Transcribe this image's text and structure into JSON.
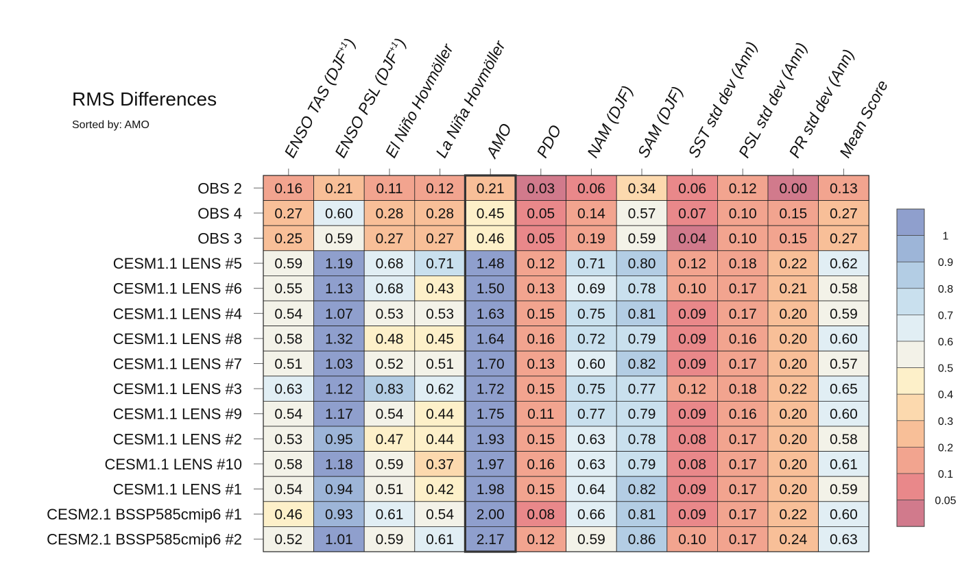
{
  "chart_data": {
    "type": "heatmap",
    "title": "RMS Differences",
    "subtitle": "Sorted by: AMO",
    "sorted_by": "AMO",
    "columns": [
      "ENSO TAS (DJF+1)",
      "ENSO PSL (DJF+1)",
      "El Niño Hovmöller",
      "La Niña Hovmöller",
      "AMO",
      "PDO",
      "NAM (DJF)",
      "SAM (DJF)",
      "SST std dev (Ann)",
      "PSL std dev (Ann)",
      "PR std dev (Ann)",
      "Mean Score"
    ],
    "column_labels": [
      {
        "base": "ENSO TAS (DJF",
        "sup": "+1",
        "end": ")"
      },
      {
        "base": "ENSO PSL (DJF",
        "sup": "+1",
        "end": ")"
      },
      {
        "base": "El Niño Hovmöller",
        "sup": "",
        "end": ""
      },
      {
        "base": "La Niña Hovmöller",
        "sup": "",
        "end": ""
      },
      {
        "base": "AMO",
        "sup": "",
        "end": ""
      },
      {
        "base": "PDO",
        "sup": "",
        "end": ""
      },
      {
        "base": "NAM (DJF)",
        "sup": "",
        "end": ""
      },
      {
        "base": "SAM (DJF)",
        "sup": "",
        "end": ""
      },
      {
        "base": "SST std dev (Ann)",
        "sup": "",
        "end": ""
      },
      {
        "base": "PSL std dev (Ann)",
        "sup": "",
        "end": ""
      },
      {
        "base": "PR std dev (Ann)",
        "sup": "",
        "end": ""
      },
      {
        "base": "Mean Score",
        "sup": "",
        "end": ""
      }
    ],
    "rows": [
      "OBS 2",
      "OBS 4",
      "OBS 3",
      "CESM1.1 LENS #5",
      "CESM1.1 LENS #6",
      "CESM1.1 LENS #4",
      "CESM1.1 LENS #8",
      "CESM1.1 LENS #7",
      "CESM1.1 LENS #3",
      "CESM1.1 LENS #9",
      "CESM1.1 LENS #2",
      "CESM1.1 LENS #10",
      "CESM1.1 LENS #1",
      "CESM2.1 BSSP585cmip6 #1",
      "CESM2.1 BSSP585cmip6 #2"
    ],
    "values": [
      [
        "0.16",
        "0.21",
        "0.11",
        "0.12",
        "0.21",
        "0.03",
        "0.06",
        "0.34",
        "0.06",
        "0.12",
        "0.00",
        "0.13"
      ],
      [
        "0.27",
        "0.60",
        "0.28",
        "0.28",
        "0.45",
        "0.05",
        "0.14",
        "0.57",
        "0.07",
        "0.10",
        "0.15",
        "0.27"
      ],
      [
        "0.25",
        "0.59",
        "0.27",
        "0.27",
        "0.46",
        "0.05",
        "0.19",
        "0.59",
        "0.04",
        "0.10",
        "0.15",
        "0.27"
      ],
      [
        "0.59",
        "1.19",
        "0.68",
        "0.71",
        "1.48",
        "0.12",
        "0.71",
        "0.80",
        "0.12",
        "0.18",
        "0.22",
        "0.62"
      ],
      [
        "0.55",
        "1.13",
        "0.68",
        "0.43",
        "1.50",
        "0.13",
        "0.69",
        "0.78",
        "0.10",
        "0.17",
        "0.21",
        "0.58"
      ],
      [
        "0.54",
        "1.07",
        "0.53",
        "0.53",
        "1.63",
        "0.15",
        "0.75",
        "0.81",
        "0.09",
        "0.17",
        "0.20",
        "0.59"
      ],
      [
        "0.58",
        "1.32",
        "0.48",
        "0.45",
        "1.64",
        "0.16",
        "0.72",
        "0.79",
        "0.09",
        "0.16",
        "0.20",
        "0.60"
      ],
      [
        "0.51",
        "1.03",
        "0.52",
        "0.51",
        "1.70",
        "0.13",
        "0.60",
        "0.82",
        "0.09",
        "0.17",
        "0.20",
        "0.57"
      ],
      [
        "0.63",
        "1.12",
        "0.83",
        "0.62",
        "1.72",
        "0.15",
        "0.75",
        "0.77",
        "0.12",
        "0.18",
        "0.22",
        "0.65"
      ],
      [
        "0.54",
        "1.17",
        "0.54",
        "0.44",
        "1.75",
        "0.11",
        "0.77",
        "0.79",
        "0.09",
        "0.16",
        "0.20",
        "0.60"
      ],
      [
        "0.53",
        "0.95",
        "0.47",
        "0.44",
        "1.93",
        "0.15",
        "0.63",
        "0.78",
        "0.08",
        "0.17",
        "0.20",
        "0.58"
      ],
      [
        "0.58",
        "1.18",
        "0.59",
        "0.37",
        "1.97",
        "0.16",
        "0.63",
        "0.79",
        "0.08",
        "0.17",
        "0.20",
        "0.61"
      ],
      [
        "0.54",
        "0.94",
        "0.51",
        "0.42",
        "1.98",
        "0.15",
        "0.64",
        "0.82",
        "0.09",
        "0.17",
        "0.20",
        "0.59"
      ],
      [
        "0.46",
        "0.93",
        "0.61",
        "0.54",
        "2.00",
        "0.08",
        "0.66",
        "0.81",
        "0.09",
        "0.17",
        "0.22",
        "0.60"
      ],
      [
        "0.52",
        "1.01",
        "0.59",
        "0.61",
        "2.17",
        "0.12",
        "0.59",
        "0.86",
        "0.10",
        "0.17",
        "0.24",
        "0.63"
      ]
    ],
    "highlight_column": "AMO",
    "colorbar": {
      "levels": [
        0.05,
        0.1,
        0.2,
        0.3,
        0.4,
        0.5,
        0.6,
        0.7,
        0.8,
        0.9,
        1
      ],
      "tick_labels": [
        "0.05",
        "0.1",
        "0.2",
        "0.3",
        "0.4",
        "0.5",
        "0.6",
        "0.7",
        "0.8",
        "0.9",
        "1"
      ],
      "colors": [
        "#d17a8c",
        "#e9888a",
        "#f2a48f",
        "#f8bf98",
        "#fcd9ae",
        "#fdf0c9",
        "#f3f2e8",
        "#e1eef4",
        "#c9e0ee",
        "#b3cde4",
        "#9db5d8",
        "#8f9fcd"
      ]
    }
  }
}
